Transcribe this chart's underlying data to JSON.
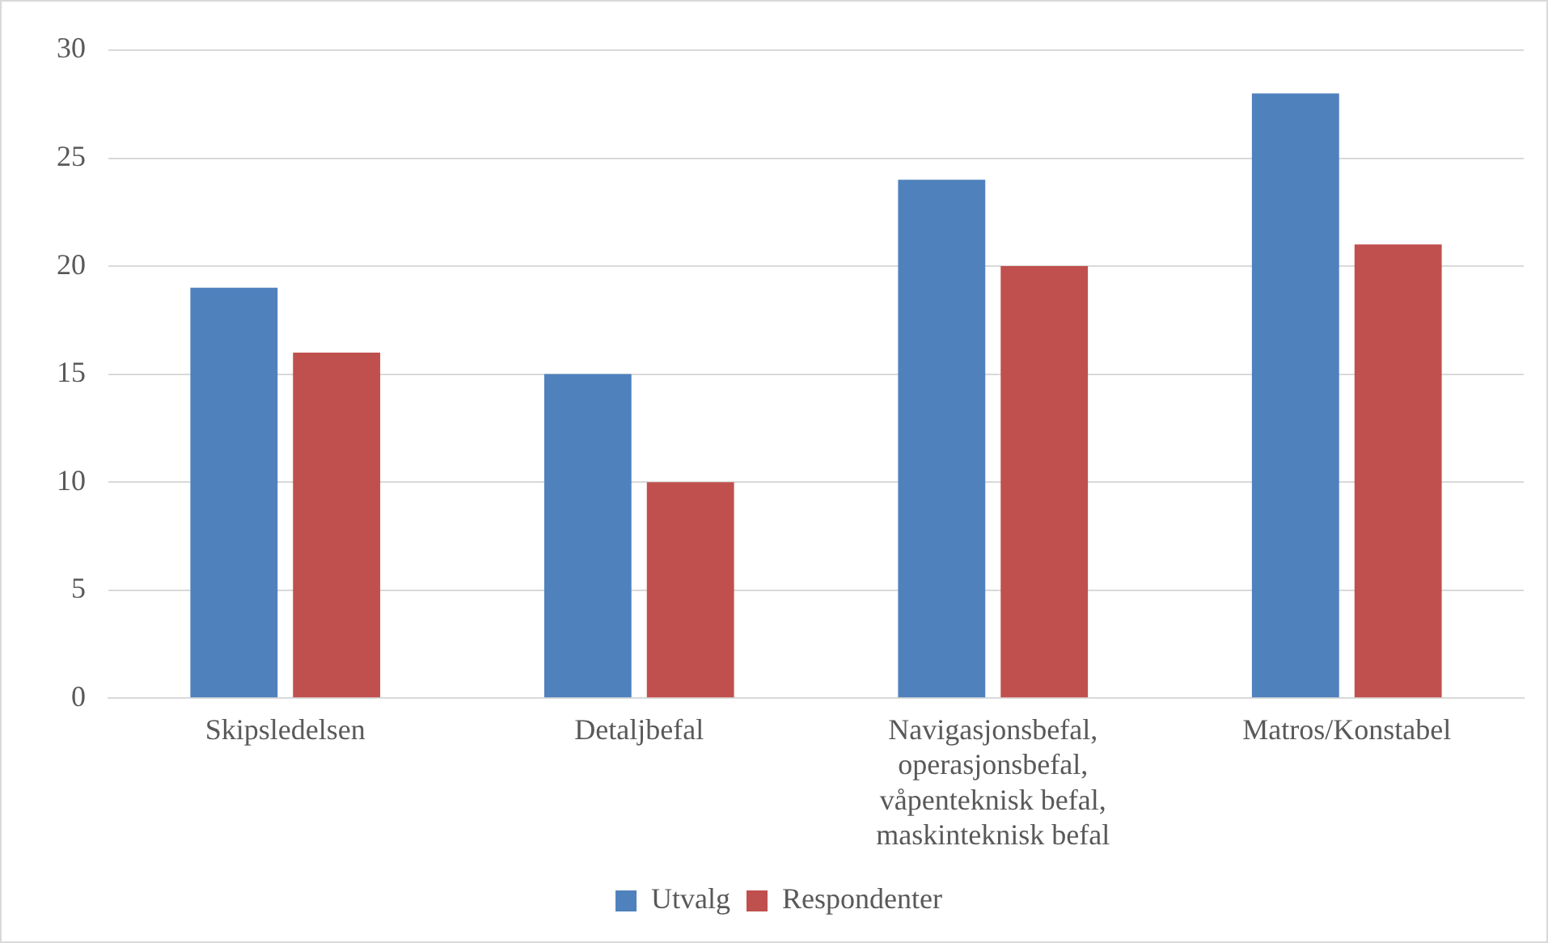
{
  "chart_data": {
    "type": "bar",
    "categories": [
      "Skipsledelsen",
      "Detaljbefal",
      "Navigasjonsbefal, operasjonsbefal, våpenteknisk befal, maskinteknisk befal",
      "Matros/Konstabel"
    ],
    "series": [
      {
        "name": "Utvalg",
        "color": "#4f81bd",
        "values": [
          19,
          15,
          24,
          28
        ]
      },
      {
        "name": "Respondenter",
        "color": "#c0504d",
        "values": [
          16,
          10,
          20,
          21
        ]
      }
    ],
    "ylim": [
      0,
      30
    ],
    "yticks": [
      0,
      5,
      10,
      15,
      20,
      25,
      30
    ],
    "grid": "y",
    "legend": "bottom"
  }
}
